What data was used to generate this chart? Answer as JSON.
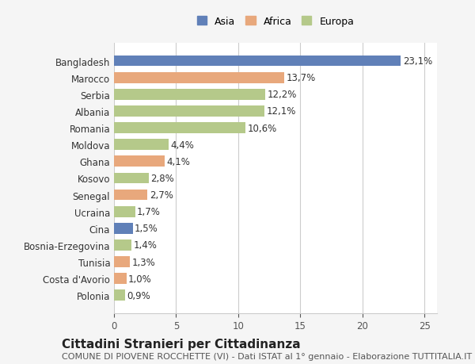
{
  "categories": [
    "Bangladesh",
    "Marocco",
    "Serbia",
    "Albania",
    "Romania",
    "Moldova",
    "Ghana",
    "Kosovo",
    "Senegal",
    "Ucraina",
    "Cina",
    "Bosnia-Erzegovina",
    "Tunisia",
    "Costa d'Avorio",
    "Polonia"
  ],
  "values": [
    23.1,
    13.7,
    12.2,
    12.1,
    10.6,
    4.4,
    4.1,
    2.8,
    2.7,
    1.7,
    1.5,
    1.4,
    1.3,
    1.0,
    0.9
  ],
  "continent": [
    "Asia",
    "Africa",
    "Europa",
    "Europa",
    "Europa",
    "Europa",
    "Africa",
    "Europa",
    "Africa",
    "Europa",
    "Asia",
    "Europa",
    "Africa",
    "Africa",
    "Europa"
  ],
  "colors": {
    "Asia": "#6080b8",
    "Africa": "#e8a87c",
    "Europa": "#b5c98a"
  },
  "legend_colors": {
    "Asia": "#6080b8",
    "Africa": "#e8a87c",
    "Europa": "#b5c98a"
  },
  "title": "Cittadini Stranieri per Cittadinanza",
  "subtitle": "COMUNE DI PIOVENE ROCCHETTE (VI) - Dati ISTAT al 1° gennaio - Elaborazione TUTTITALIA.IT",
  "xlim": [
    0,
    26
  ],
  "xticks": [
    0,
    5,
    10,
    15,
    20,
    25
  ],
  "background_color": "#f5f5f5",
  "bar_background": "#ffffff",
  "grid_color": "#cccccc",
  "label_fontsize": 8.5,
  "value_fontsize": 8.5,
  "title_fontsize": 11,
  "subtitle_fontsize": 8
}
